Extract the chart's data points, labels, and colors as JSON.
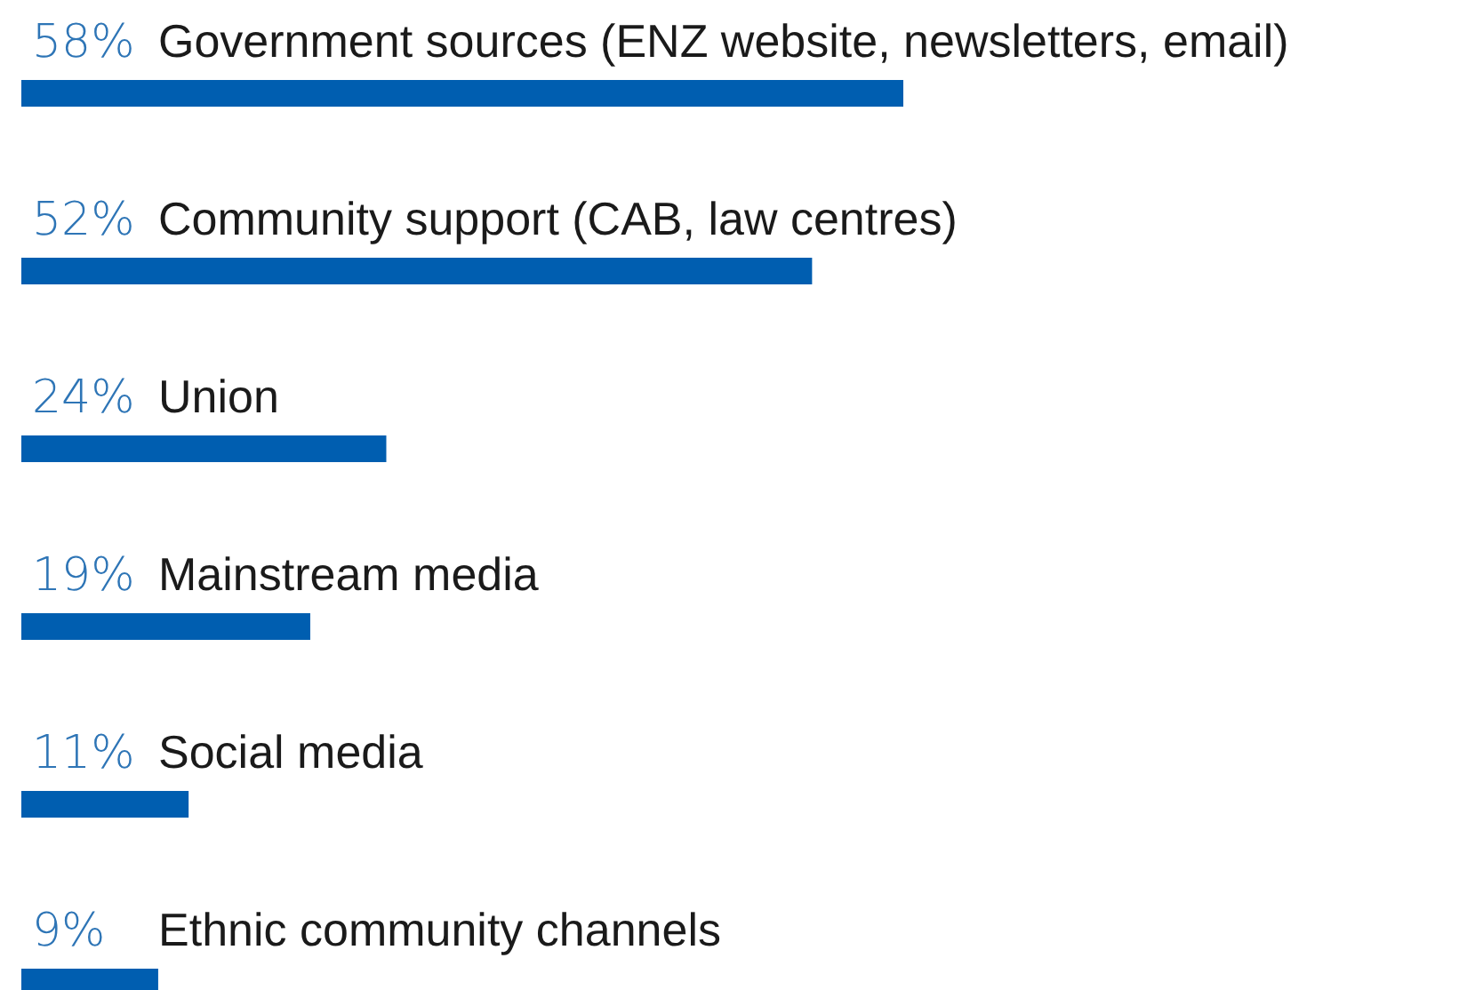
{
  "chart_data": {
    "type": "bar",
    "orientation": "horizontal",
    "categories": [
      "Government sources (ENZ website, newsletters, email)",
      "Community support (CAB, law centres)",
      "Union",
      "Mainstream media",
      "Social media",
      "Ethnic community channels"
    ],
    "values": [
      58,
      52,
      24,
      19,
      11,
      9
    ],
    "value_labels": [
      "58%",
      "52%",
      "24%",
      "19%",
      "11%",
      "9%"
    ],
    "color": "#005eb0"
  }
}
